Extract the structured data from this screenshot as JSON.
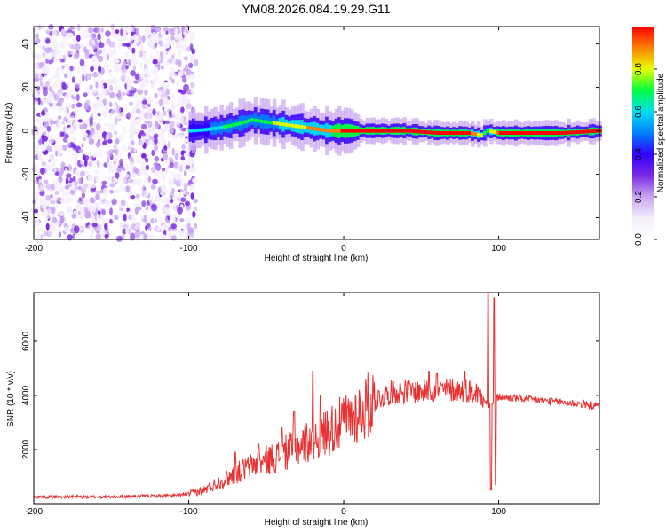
{
  "title": "YM08.2026.084.19.29.G11",
  "colors": {
    "axis": "#000000",
    "snr_line": "#e83030",
    "colormap": [
      "#f4eefc",
      "#c9a6f2",
      "#7a2ae0",
      "#3300ff",
      "#0080ff",
      "#00e0f0",
      "#00ff40",
      "#e8ff00",
      "#ff8000",
      "#ff0000"
    ]
  },
  "chart_data": [
    {
      "type": "heatmap",
      "name": "spectrogram",
      "title": "YM08.2026.084.19.29.G11",
      "xlabel": "Height of straight line (km)",
      "ylabel": "Frequency (Hz)",
      "xlim": [
        -200,
        165
      ],
      "ylim": [
        -50,
        48
      ],
      "x_ticks": [
        -200,
        -100,
        0,
        100
      ],
      "x_tick_labels": [
        "-200",
        "-100",
        "0",
        "100"
      ],
      "y_ticks": [
        -40,
        -20,
        0,
        20,
        40
      ],
      "y_tick_labels": [
        "-40",
        "-20",
        "0",
        "20",
        "40"
      ],
      "noise_region_x": [
        -200,
        -100
      ],
      "ridge": {
        "x": [
          -100,
          -90,
          -80,
          -70,
          -60,
          -50,
          -40,
          -30,
          -20,
          -10,
          0,
          10,
          20,
          40,
          60,
          80,
          88,
          92,
          100,
          120,
          140,
          165
        ],
        "freq": [
          0,
          0.5,
          1.5,
          3,
          5,
          4,
          3,
          2,
          1,
          0,
          0,
          0,
          0,
          0,
          -1,
          -1,
          -2,
          0,
          -1,
          -1,
          -1,
          0
        ],
        "amplitude": [
          0.45,
          0.5,
          0.55,
          0.6,
          0.65,
          0.65,
          0.7,
          0.75,
          0.8,
          0.85,
          0.9,
          0.95,
          0.98,
          0.95,
          0.9,
          0.9,
          0.7,
          0.6,
          0.95,
          0.95,
          0.98,
          0.95
        ]
      },
      "colorbar": {
        "label": "Normalized spectral amplitude",
        "range": [
          0,
          1
        ],
        "ticks": [
          0,
          0.2,
          0.4,
          0.6,
          0.8
        ],
        "tick_labels": [
          "0.0",
          "0.2",
          "0.4",
          "0.6",
          "0.8"
        ]
      }
    },
    {
      "type": "line",
      "name": "snr",
      "xlabel": "Height of straight line (km)",
      "ylabel": "SNR (10 * v/v)",
      "xlim": [
        -200,
        165
      ],
      "ylim": [
        0,
        7800
      ],
      "x_ticks": [
        -200,
        -100,
        0,
        100
      ],
      "x_tick_labels": [
        "-200",
        "-100",
        "0",
        "100"
      ],
      "y_ticks": [
        2000,
        4000,
        6000
      ],
      "y_tick_labels": [
        "2000",
        "4000",
        "6000"
      ],
      "series": [
        {
          "name": "SNR",
          "x": [
            -200,
            -150,
            -110,
            -100,
            -90,
            -80,
            -70,
            -60,
            -50,
            -40,
            -30,
            -20,
            -10,
            0,
            10,
            20,
            30,
            40,
            50,
            60,
            70,
            80,
            85,
            90,
            93,
            96,
            100,
            110,
            120,
            130,
            140,
            150,
            165
          ],
          "y": [
            250,
            250,
            300,
            350,
            500,
            800,
            1100,
            1400,
            1600,
            1800,
            2100,
            2400,
            2700,
            3000,
            3400,
            3800,
            4100,
            4150,
            4150,
            4200,
            4200,
            4200,
            4100,
            4000,
            3600,
            3700,
            3950,
            3900,
            3850,
            3800,
            3750,
            3700,
            3600
          ]
        }
      ],
      "spikes": {
        "x": [
          -70,
          -55,
          -40,
          -32,
          -20,
          -15,
          55,
          60,
          78,
          93,
          95,
          97,
          98
        ],
        "y": [
          1900,
          2200,
          2800,
          3400,
          4900,
          4000,
          4900,
          4800,
          4900,
          7800,
          500,
          7600,
          700
        ]
      }
    }
  ]
}
